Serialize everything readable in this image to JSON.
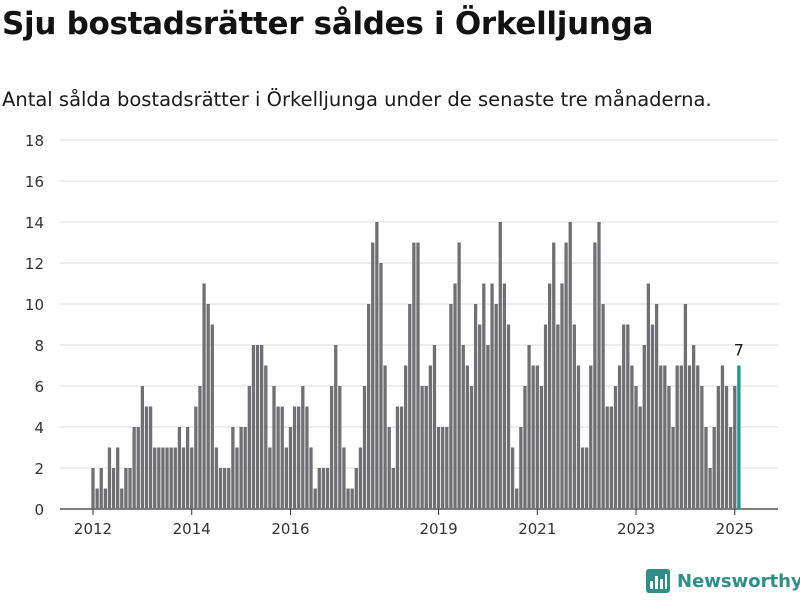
{
  "header": {
    "title": "Sju bostadsrätter såldes i Örkelljunga",
    "subtitle": "Antal sålda bostadsrätter i Örkelljunga under de senaste tre månaderna."
  },
  "brand": {
    "name": "Newsworthy",
    "icon": "newsworthy-logo-icon",
    "color": "#2f8f86"
  },
  "chart_data": {
    "type": "bar",
    "ylim": [
      0,
      18
    ],
    "yticks": [
      0,
      2,
      4,
      6,
      8,
      10,
      12,
      14,
      16,
      18
    ],
    "xticks": [
      "2012",
      "2014",
      "2016",
      "2019",
      "2021",
      "2023",
      "2025"
    ],
    "grid": true,
    "bar_color": "#707074",
    "highlight_color": "#1a9a8f",
    "highlight_label": "7",
    "x_start": "2012-01",
    "x_end": "2025-03",
    "values": [
      2,
      1,
      2,
      1,
      3,
      2,
      3,
      1,
      2,
      2,
      4,
      4,
      6,
      5,
      5,
      3,
      3,
      3,
      3,
      3,
      3,
      4,
      3,
      4,
      3,
      5,
      6,
      11,
      10,
      9,
      3,
      2,
      2,
      2,
      4,
      3,
      4,
      4,
      6,
      8,
      8,
      8,
      7,
      3,
      6,
      5,
      5,
      3,
      4,
      5,
      5,
      6,
      5,
      3,
      1,
      2,
      2,
      2,
      6,
      8,
      6,
      3,
      1,
      1,
      2,
      3,
      6,
      10,
      13,
      14,
      12,
      7,
      4,
      2,
      5,
      5,
      7,
      10,
      13,
      13,
      6,
      6,
      7,
      8,
      4,
      4,
      4,
      10,
      11,
      13,
      8,
      7,
      6,
      10,
      9,
      11,
      8,
      11,
      10,
      14,
      11,
      9,
      3,
      1,
      4,
      6,
      8,
      7,
      7,
      6,
      9,
      11,
      13,
      9,
      11,
      13,
      14,
      9,
      7,
      3,
      3,
      7,
      13,
      14,
      10,
      5,
      5,
      6,
      7,
      9,
      9,
      7,
      6,
      5,
      8,
      11,
      9,
      10,
      7,
      7,
      6,
      4,
      7,
      7,
      10,
      7,
      8,
      7,
      6,
      4,
      2,
      4,
      6,
      7,
      6,
      4,
      6,
      7
    ]
  }
}
